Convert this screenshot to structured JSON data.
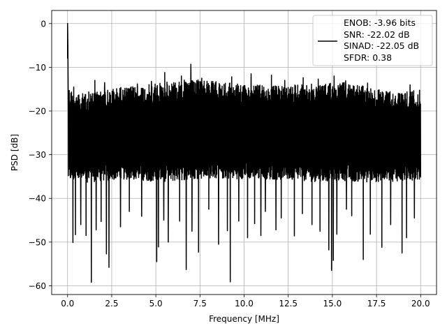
{
  "chart_data": {
    "type": "line",
    "title": "",
    "xlabel": "Frequency [MHz]",
    "ylabel": "PSD [dB]",
    "xlim": [
      -0.9,
      20.9
    ],
    "ylim": [
      -62.0,
      3.0
    ],
    "x_ticks": [
      0.0,
      2.5,
      5.0,
      7.5,
      10.0,
      12.5,
      15.0,
      17.5,
      20.0
    ],
    "x_tick_labels": [
      "0.0",
      "2.5",
      "5.0",
      "7.5",
      "10.0",
      "12.5",
      "15.0",
      "17.5",
      "20.0"
    ],
    "y_ticks": [
      0,
      -10,
      -20,
      -30,
      -40,
      -50,
      -60
    ],
    "y_tick_labels": [
      "0",
      "−10",
      "−20",
      "−30",
      "−40",
      "−50",
      "−60"
    ],
    "grid": true,
    "legend_position": "top-right",
    "line_color": "#000000",
    "series": [
      {
        "label_lines": [
          "ENOB: -3.96 bits",
          "SNR: -22.02 dB",
          "SINAD: -22.05 dB",
          "SFDR: 0.38"
        ],
        "peak": {
          "x": 0.0,
          "y": 0.0
        },
        "start_points": [
          [
            0.0,
            -8.0
          ],
          [
            0.0,
            0.0
          ],
          [
            0.02,
            -5.5
          ],
          [
            0.04,
            -20.0
          ]
        ],
        "upper_envelope": [
          [
            0.0,
            -14
          ],
          [
            0.5,
            -16.5
          ],
          [
            1,
            -15.8
          ],
          [
            2,
            -14.9
          ],
          [
            3,
            -14.6
          ],
          [
            4,
            -14.3
          ],
          [
            5,
            -13.7
          ],
          [
            6,
            -13.1
          ],
          [
            7,
            -12.8
          ],
          [
            8,
            -13.0
          ],
          [
            9,
            -13.5
          ],
          [
            10,
            -13.8
          ],
          [
            11,
            -14.0
          ],
          [
            12,
            -14.3
          ],
          [
            13,
            -14.0
          ],
          [
            14,
            -13.7
          ],
          [
            15,
            -13.6
          ],
          [
            16,
            -13.5
          ],
          [
            17,
            -14.5
          ],
          [
            18,
            -15.4
          ],
          [
            19,
            -15.6
          ],
          [
            20,
            -15.2
          ]
        ],
        "lower_envelope": [
          [
            0.0,
            -36
          ],
          [
            1,
            -36.4
          ],
          [
            2,
            -36.0
          ],
          [
            3,
            -35.7
          ],
          [
            4,
            -35.8
          ],
          [
            5,
            -36.2
          ],
          [
            6,
            -36.1
          ],
          [
            7,
            -35.6
          ],
          [
            8,
            -35.4
          ],
          [
            9,
            -35.6
          ],
          [
            10,
            -35.5
          ],
          [
            11,
            -35.6
          ],
          [
            12,
            -35.8
          ],
          [
            13,
            -35.9
          ],
          [
            14,
            -36.2
          ],
          [
            15,
            -36.0
          ],
          [
            16,
            -36.1
          ],
          [
            17,
            -36.3
          ],
          [
            18,
            -36.2
          ],
          [
            19,
            -36.0
          ],
          [
            20,
            -35.8
          ]
        ],
        "spikes_up": [
          [
            0.35,
            -14.5
          ],
          [
            1.55,
            -13.0
          ],
          [
            2.1,
            -13.5
          ],
          [
            3.95,
            -13.8
          ],
          [
            4.75,
            -13.2
          ],
          [
            5.5,
            -11.2
          ],
          [
            6.45,
            -12.0
          ],
          [
            6.98,
            -9.3
          ],
          [
            7.6,
            -12.5
          ],
          [
            9.3,
            -12.2
          ],
          [
            10.4,
            -11.5
          ],
          [
            11.55,
            -11.8
          ],
          [
            12.3,
            -13.0
          ],
          [
            13.35,
            -12.4
          ],
          [
            14.2,
            -12.7
          ],
          [
            15.1,
            -12.0
          ],
          [
            15.75,
            -13.1
          ],
          [
            17.0,
            -13.6
          ],
          [
            19.4,
            -14.0
          ]
        ],
        "spikes_down": [
          [
            0.3,
            -50.1
          ],
          [
            0.45,
            -48.3
          ],
          [
            0.75,
            -46.0
          ],
          [
            1.05,
            -48.5
          ],
          [
            1.35,
            -59.2
          ],
          [
            1.62,
            -47.2
          ],
          [
            1.9,
            -45.3
          ],
          [
            2.2,
            -52.7
          ],
          [
            2.35,
            -55.8
          ],
          [
            3.0,
            -46.5
          ],
          [
            3.5,
            -43.0
          ],
          [
            4.2,
            -44.1
          ],
          [
            5.05,
            -54.5
          ],
          [
            5.15,
            -51.1
          ],
          [
            5.45,
            -45.0
          ],
          [
            5.7,
            -50.0
          ],
          [
            6.35,
            -45.2
          ],
          [
            6.72,
            -56.3
          ],
          [
            7.05,
            -47.5
          ],
          [
            7.42,
            -52.3
          ],
          [
            8.0,
            -42.5
          ],
          [
            8.55,
            -50.5
          ],
          [
            9.05,
            -47.4
          ],
          [
            9.22,
            -59.1
          ],
          [
            9.7,
            -45.2
          ],
          [
            10.2,
            -49.0
          ],
          [
            10.6,
            -45.8
          ],
          [
            10.95,
            -48.5
          ],
          [
            11.2,
            -43.0
          ],
          [
            11.8,
            -47.2
          ],
          [
            12.1,
            -44.5
          ],
          [
            12.85,
            -48.6
          ],
          [
            13.3,
            -43.5
          ],
          [
            13.85,
            -46.0
          ],
          [
            14.3,
            -47.5
          ],
          [
            14.8,
            -51.8
          ],
          [
            14.95,
            -56.5
          ],
          [
            15.05,
            -54.2
          ],
          [
            15.25,
            -48.2
          ],
          [
            15.8,
            -42.5
          ],
          [
            16.1,
            -44.0
          ],
          [
            16.75,
            -54.0
          ],
          [
            17.15,
            -48.2
          ],
          [
            17.8,
            -51.2
          ],
          [
            18.3,
            -46.0
          ],
          [
            18.95,
            -52.5
          ],
          [
            19.2,
            -49.0
          ],
          [
            19.65,
            -44.5
          ]
        ]
      }
    ]
  }
}
